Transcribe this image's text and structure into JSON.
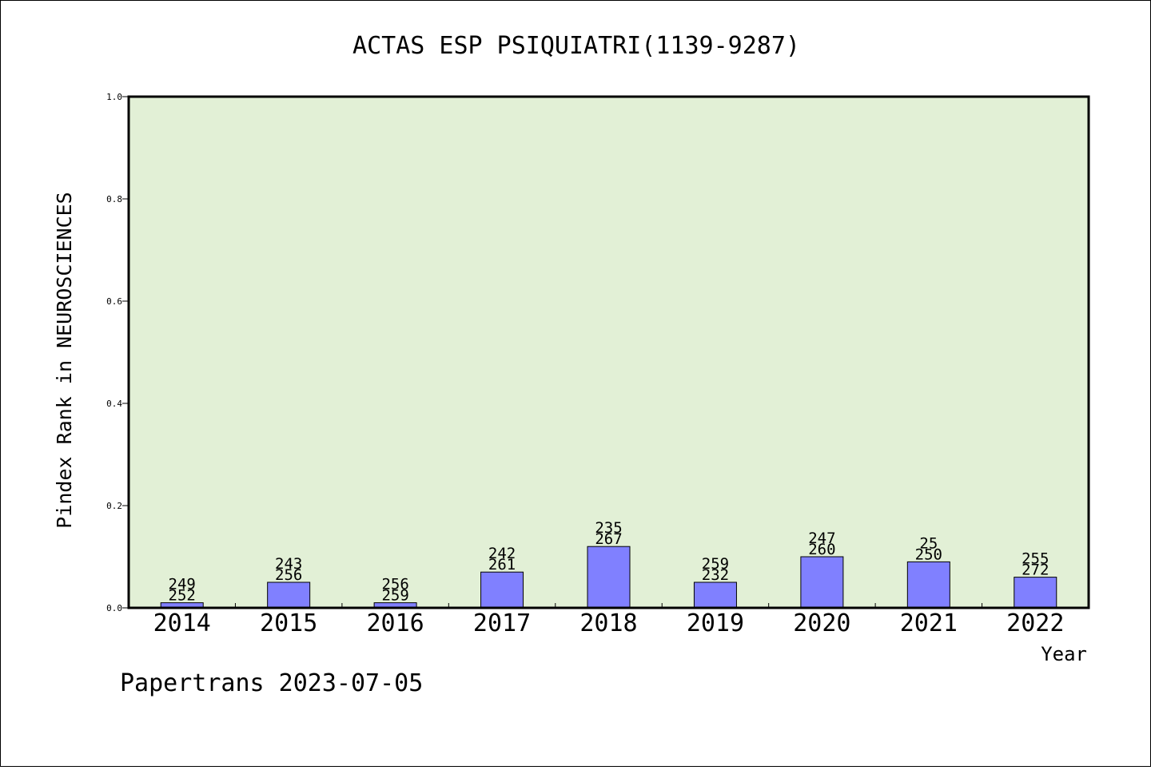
{
  "chart_data": {
    "type": "bar",
    "title": "ACTAS ESP PSIQUIATRI(1139-9287)",
    "xlabel": "Year",
    "ylabel": "Pindex Rank in NEUROSCIENCES",
    "ylim": [
      0,
      1.0
    ],
    "yticks": [
      "0.0",
      "0.2",
      "0.4",
      "0.6",
      "0.8",
      "1.0"
    ],
    "grid": false,
    "categories": [
      "2014",
      "2015",
      "2016",
      "2017",
      "2018",
      "2019",
      "2020",
      "2021",
      "2022"
    ],
    "values": [
      0.01,
      0.05,
      0.01,
      0.07,
      0.12,
      0.05,
      0.1,
      0.09,
      0.06
    ],
    "labels_top": [
      "249",
      "243",
      "256",
      "242",
      "235",
      "259",
      "247",
      "25",
      "255"
    ],
    "labels_bottom": [
      "252",
      "256",
      "259",
      "261",
      "267",
      "232",
      "260",
      "250",
      "272"
    ],
    "bar_color": "#8080ff",
    "plot_background": "#e2f0d6"
  },
  "footer": "Papertrans 2023-07-05"
}
